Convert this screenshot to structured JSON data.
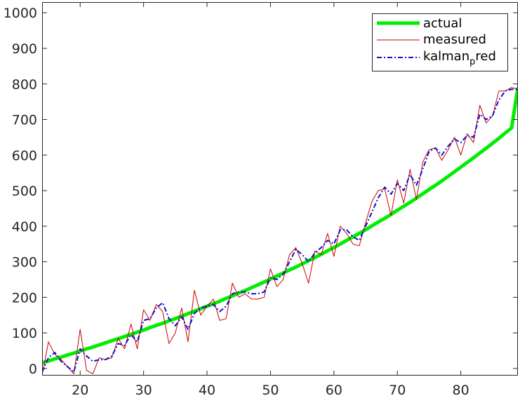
{
  "chart_data": {
    "type": "line",
    "title": "",
    "xlabel": "",
    "ylabel": "",
    "xlim": [
      14,
      89
    ],
    "ylim": [
      -20,
      1030
    ],
    "xticks": [
      20,
      30,
      40,
      50,
      60,
      70,
      80
    ],
    "yticks": [
      0,
      100,
      200,
      300,
      400,
      500,
      600,
      700,
      800,
      900,
      1000
    ],
    "grid": false,
    "legend_position": "top-right",
    "x": [
      14,
      15,
      16,
      17,
      18,
      19,
      20,
      21,
      22,
      23,
      24,
      25,
      26,
      27,
      28,
      29,
      30,
      31,
      32,
      33,
      34,
      35,
      36,
      37,
      38,
      39,
      40,
      41,
      42,
      43,
      44,
      45,
      46,
      47,
      48,
      49,
      50,
      51,
      52,
      53,
      54,
      55,
      56,
      57,
      58,
      59,
      60,
      61,
      62,
      63,
      64,
      65,
      66,
      67,
      68,
      69,
      70,
      71,
      72,
      73,
      74,
      75,
      76,
      77,
      78,
      79,
      80,
      81,
      82,
      83,
      84,
      85,
      86,
      87,
      88,
      89
    ],
    "series": [
      {
        "name": "actual",
        "color": "#00ee00",
        "style": "solid-thick",
        "values": [
          16,
          21,
          27,
          32,
          38,
          43,
          49,
          55,
          60,
          66,
          72,
          78,
          84,
          90,
          96,
          102,
          108,
          115,
          121,
          127,
          134,
          140,
          147,
          154,
          161,
          168,
          175,
          182,
          189,
          197,
          204,
          212,
          219,
          227,
          235,
          243,
          251,
          260,
          268,
          277,
          285,
          294,
          303,
          312,
          321,
          331,
          340,
          350,
          360,
          370,
          380,
          390,
          401,
          412,
          422,
          433,
          445,
          456,
          467,
          479,
          491,
          503,
          515,
          527,
          540,
          553,
          566,
          579,
          592,
          606,
          619,
          633,
          647,
          662,
          676,
          790
        ]
      },
      {
        "name": "measured",
        "color": "#cc0000",
        "style": "solid-thin",
        "values": [
          -20,
          75,
          40,
          25,
          5,
          -15,
          110,
          -5,
          -15,
          30,
          25,
          30,
          85,
          55,
          125,
          55,
          165,
          135,
          180,
          160,
          70,
          100,
          170,
          75,
          220,
          150,
          175,
          195,
          135,
          140,
          240,
          200,
          210,
          195,
          195,
          200,
          280,
          230,
          250,
          320,
          340,
          295,
          240,
          330,
          320,
          380,
          315,
          400,
          380,
          350,
          345,
          410,
          470,
          500,
          505,
          430,
          530,
          465,
          560,
          475,
          580,
          615,
          620,
          585,
          615,
          650,
          600,
          660,
          635,
          740,
          690,
          710,
          780,
          780,
          790,
          785
        ]
      },
      {
        "name": "kalman_pred",
        "color": "#1010cc",
        "style": "dash-dot",
        "values": [
          -10,
          30,
          45,
          20,
          5,
          -10,
          55,
          35,
          20,
          25,
          25,
          35,
          70,
          65,
          95,
          75,
          135,
          140,
          170,
          185,
          140,
          120,
          145,
          110,
          155,
          170,
          175,
          180,
          160,
          175,
          210,
          215,
          215,
          210,
          210,
          215,
          255,
          250,
          265,
          300,
          335,
          320,
          300,
          325,
          340,
          360,
          350,
          390,
          390,
          370,
          360,
          400,
          440,
          480,
          510,
          490,
          520,
          500,
          545,
          515,
          560,
          610,
          620,
          600,
          625,
          645,
          635,
          655,
          650,
          715,
          700,
          710,
          755,
          780,
          785,
          785
        ]
      }
    ]
  },
  "legend": {
    "items": [
      {
        "label": "actual",
        "sub": "",
        "rest": ""
      },
      {
        "label": "measured",
        "sub": "",
        "rest": ""
      },
      {
        "label": "kalman",
        "sub": "p",
        "rest": "red"
      }
    ]
  }
}
